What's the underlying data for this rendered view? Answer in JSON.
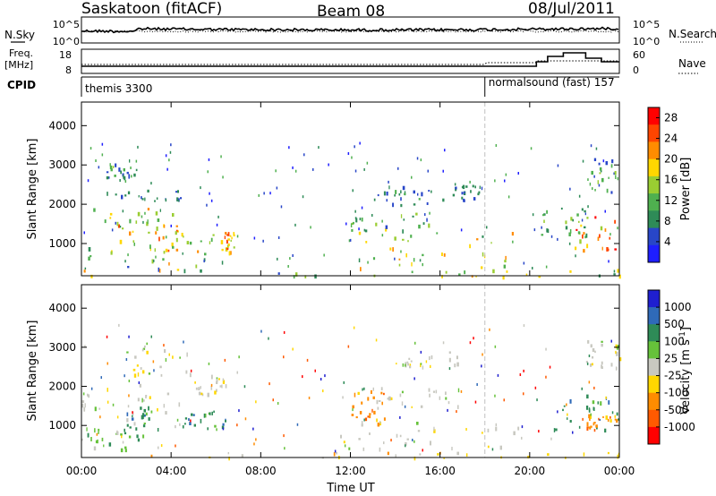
{
  "header": {
    "station": "Saskatoon (fitACF)",
    "beam": "Beam 08",
    "date": "08/Jul/2011"
  },
  "top_panels": {
    "nsky_label": "N.Sky",
    "nsearch_label": "N.Search",
    "count_ticks": [
      "10^5",
      "10^0"
    ],
    "freq_label": "Freq.",
    "freq_unit": "[MHz]",
    "freq_ticks": [
      "18",
      "8"
    ],
    "nave_label": "Nave",
    "nave_ticks": [
      "60",
      "0"
    ],
    "cpid_label": "CPID",
    "cpid_segments": [
      {
        "label": "themis 3300",
        "start_hour": 0,
        "end_hour": 18
      },
      {
        "label": "normalsound (fast) 157",
        "start_hour": 18,
        "end_hour": 24
      }
    ]
  },
  "colors": {
    "power": [
      "#1e1eff",
      "#2846c8",
      "#2e8b57",
      "#4fb04f",
      "#9acd32",
      "#ffd700",
      "#ff8c00",
      "#ff4500",
      "#ff0000"
    ],
    "velocity": [
      "#1f1fd0",
      "#2f6ab8",
      "#2e8b57",
      "#66c23a",
      "#c8c8c0",
      "#ffd700",
      "#ff8c00",
      "#ff5a00",
      "#ff0000"
    ]
  },
  "chart_data": [
    {
      "type": "heatmap",
      "name": "power",
      "xlabel": "",
      "ylabel": "Slant Range [km]",
      "xlim": [
        0,
        24
      ],
      "ylim": [
        180,
        4600
      ],
      "x_ticks": [
        0,
        4,
        8,
        12,
        16,
        20,
        24
      ],
      "y_ticks": [
        1000,
        2000,
        3000,
        4000
      ],
      "colorbar_label": "Power [dB]",
      "colorbar_ticks": [
        4,
        8,
        12,
        16,
        20,
        24,
        28
      ],
      "colorbar_range": [
        0,
        30
      ],
      "regions": [
        {
          "t": [
            0.0,
            4.6
          ],
          "r": [
            1300,
            1950
          ],
          "v": [
            8,
            24
          ]
        },
        {
          "t": [
            1.0,
            2.5
          ],
          "r": [
            2700,
            3200
          ],
          "v": [
            4,
            14
          ]
        },
        {
          "t": [
            0.0,
            6.8
          ],
          "r": [
            300,
            1100
          ],
          "v": [
            6,
            22
          ]
        },
        {
          "t": [
            2.0,
            6.0
          ],
          "r": [
            800,
            1400
          ],
          "v": [
            10,
            26
          ]
        },
        {
          "t": [
            6.2,
            6.8
          ],
          "r": [
            800,
            1350
          ],
          "v": [
            14,
            26
          ]
        },
        {
          "t": [
            1.0,
            4.5
          ],
          "r": [
            2100,
            2400
          ],
          "v": [
            4,
            10
          ]
        },
        {
          "t": [
            0.0,
            24.0
          ],
          "r": [
            180,
            360
          ],
          "v": [
            6,
            22
          ]
        },
        {
          "t": [
            11.5,
            20.0
          ],
          "r": [
            400,
            1300
          ],
          "v": [
            8,
            24
          ]
        },
        {
          "t": [
            12.0,
            15.5
          ],
          "r": [
            1300,
            1800
          ],
          "v": [
            6,
            18
          ]
        },
        {
          "t": [
            13.0,
            15.5
          ],
          "r": [
            2000,
            2500
          ],
          "v": [
            4,
            12
          ]
        },
        {
          "t": [
            16.0,
            18.0
          ],
          "r": [
            2100,
            2500
          ],
          "v": [
            4,
            10
          ]
        },
        {
          "t": [
            22.0,
            24.0
          ],
          "r": [
            800,
            1700
          ],
          "v": [
            12,
            30
          ]
        },
        {
          "t": [
            22.5,
            24.0
          ],
          "r": [
            2300,
            3300
          ],
          "v": [
            4,
            14
          ]
        },
        {
          "t": [
            20.5,
            22.5
          ],
          "r": [
            1200,
            1950
          ],
          "v": [
            6,
            14
          ]
        }
      ]
    },
    {
      "type": "heatmap",
      "name": "velocity",
      "xlabel": "Time UT",
      "ylabel": "Slant Range [km]",
      "xlim": [
        0,
        24
      ],
      "ylim": [
        180,
        4600
      ],
      "x_ticks": [
        0,
        4,
        8,
        12,
        16,
        20,
        24
      ],
      "x_tick_labels": [
        "00:00",
        "04:00",
        "08:00",
        "12:00",
        "16:00",
        "20:00",
        "00:00"
      ],
      "y_ticks": [
        1000,
        2000,
        3000,
        4000
      ],
      "colorbar_label": "Velocity [m s^-1]",
      "colorbar_ticks": [
        1000,
        500,
        100,
        25,
        -25,
        -100,
        -500,
        -1000
      ],
      "regions": [
        {
          "t": [
            0.0,
            2.0
          ],
          "r": [
            400,
            1000
          ],
          "c": 3
        },
        {
          "t": [
            0.0,
            4.5
          ],
          "r": [
            1000,
            2100
          ],
          "c": 4
        },
        {
          "t": [
            2.0,
            3.5
          ],
          "r": [
            600,
            1500
          ],
          "c": 2
        },
        {
          "t": [
            2.0,
            5.0
          ],
          "r": [
            2300,
            3200
          ],
          "c": 4
        },
        {
          "t": [
            4.5,
            6.5
          ],
          "r": [
            900,
            1400
          ],
          "c": 2
        },
        {
          "t": [
            5.0,
            6.5
          ],
          "r": [
            1800,
            2300
          ],
          "c": 4
        },
        {
          "t": [
            0.0,
            24.0
          ],
          "r": [
            180,
            330
          ],
          "c": 5
        },
        {
          "t": [
            11.5,
            19.5
          ],
          "r": [
            400,
            1100
          ],
          "c": 4
        },
        {
          "t": [
            12.0,
            13.5
          ],
          "r": [
            1000,
            2000
          ],
          "c": 6
        },
        {
          "t": [
            13.0,
            17.0
          ],
          "r": [
            1400,
            2000
          ],
          "c": 4
        },
        {
          "t": [
            14.0,
            17.0
          ],
          "r": [
            2500,
            2900
          ],
          "c": 4
        },
        {
          "t": [
            21.0,
            24.0
          ],
          "r": [
            900,
            1800
          ],
          "c": 2
        },
        {
          "t": [
            22.5,
            24.0
          ],
          "r": [
            900,
            1300
          ],
          "c": 6
        },
        {
          "t": [
            22.5,
            24.0
          ],
          "r": [
            2500,
            3200
          ],
          "c": 4
        }
      ]
    }
  ]
}
